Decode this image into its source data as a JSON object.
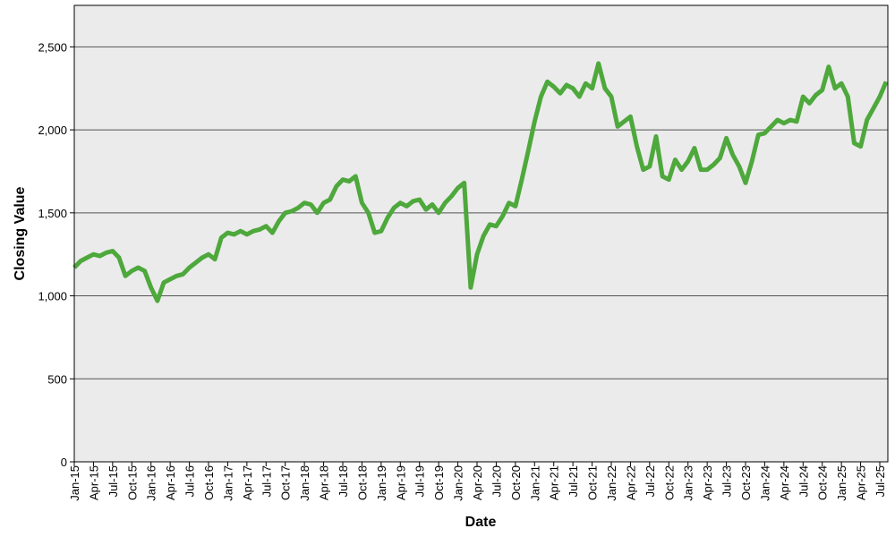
{
  "chart_data": {
    "type": "line",
    "x_label": "Date",
    "y_label": "Closing Value",
    "categories": [
      "Jan-15",
      null,
      null,
      "Apr-15",
      null,
      null,
      "Jul-15",
      null,
      null,
      "Oct-15",
      null,
      null,
      "Jan-16",
      null,
      null,
      "Apr-16",
      null,
      null,
      "Jul-16",
      null,
      null,
      "Oct-16",
      null,
      null,
      "Jan-17",
      null,
      null,
      "Apr-17",
      null,
      null,
      "Jul-17",
      null,
      null,
      "Oct-17",
      null,
      null,
      "Jan-18",
      null,
      null,
      "Apr-18",
      null,
      null,
      "Jul-18",
      null,
      null,
      "Oct-18",
      null,
      null,
      "Jan-19",
      null,
      null,
      "Apr-19",
      null,
      null,
      "Jul-19",
      null,
      null,
      "Oct-19",
      null,
      null,
      "Jan-20",
      null,
      null,
      "Apr-20",
      null,
      null,
      "Jul-20",
      null,
      null,
      "Oct-20",
      null,
      null,
      "Jan-21",
      null,
      null,
      "Apr-21",
      null,
      null,
      "Jul-21",
      null,
      null,
      "Oct-21",
      null,
      null,
      "Jan-22",
      null,
      null,
      "Apr-22",
      null,
      null,
      "Jul-22",
      null,
      null,
      "Oct-22",
      null,
      null,
      "Jan-23",
      null,
      null,
      "Apr-23",
      null,
      null,
      "Jul-23",
      null,
      null,
      "Oct-23",
      null,
      null,
      "Jan-24",
      null,
      null,
      "Apr-24",
      null,
      null,
      "Jul-24",
      null,
      null,
      "Oct-24",
      null,
      null,
      "Jan-25",
      null,
      null,
      "Apr-25",
      null,
      null,
      "Jul-25",
      null
    ],
    "series": [
      {
        "color": "#4ea83c",
        "values": [
          1170,
          1210,
          1230,
          1250,
          1240,
          1260,
          1270,
          1230,
          1120,
          1150,
          1170,
          1150,
          1050,
          970,
          1080,
          1100,
          1120,
          1130,
          1170,
          1200,
          1230,
          1250,
          1220,
          1350,
          1380,
          1370,
          1390,
          1370,
          1390,
          1400,
          1420,
          1380,
          1450,
          1500,
          1510,
          1530,
          1560,
          1550,
          1500,
          1560,
          1580,
          1660,
          1700,
          1690,
          1720,
          1560,
          1500,
          1380,
          1390,
          1470,
          1530,
          1560,
          1540,
          1570,
          1580,
          1520,
          1550,
          1500,
          1560,
          1600,
          1650,
          1680,
          1050,
          1250,
          1360,
          1430,
          1420,
          1480,
          1560,
          1540,
          1700,
          1870,
          2050,
          2200,
          2290,
          2260,
          2220,
          2270,
          2250,
          2200,
          2280,
          2250,
          2400,
          2250,
          2200,
          2020,
          2050,
          2080,
          1900,
          1760,
          1780,
          1960,
          1720,
          1700,
          1820,
          1760,
          1810,
          1890,
          1760,
          1760,
          1790,
          1830,
          1950,
          1850,
          1780,
          1680,
          1810,
          1970,
          1980,
          2020,
          2060,
          2040,
          2060,
          2050,
          2200,
          2160,
          2210,
          2240,
          2380,
          2250,
          2280,
          2200,
          1920,
          1900,
          2060,
          2130,
          2200,
          2290
        ]
      }
    ],
    "ylim": [
      0,
      2750
    ],
    "yticks": [
      0,
      500,
      {
        "value": 1000,
        "label": "1,000"
      },
      {
        "value": 1500,
        "label": "1,500"
      },
      {
        "value": 2000,
        "label": "2,000"
      },
      {
        "value": 2500,
        "label": "2,500"
      }
    ],
    "grid": true
  }
}
